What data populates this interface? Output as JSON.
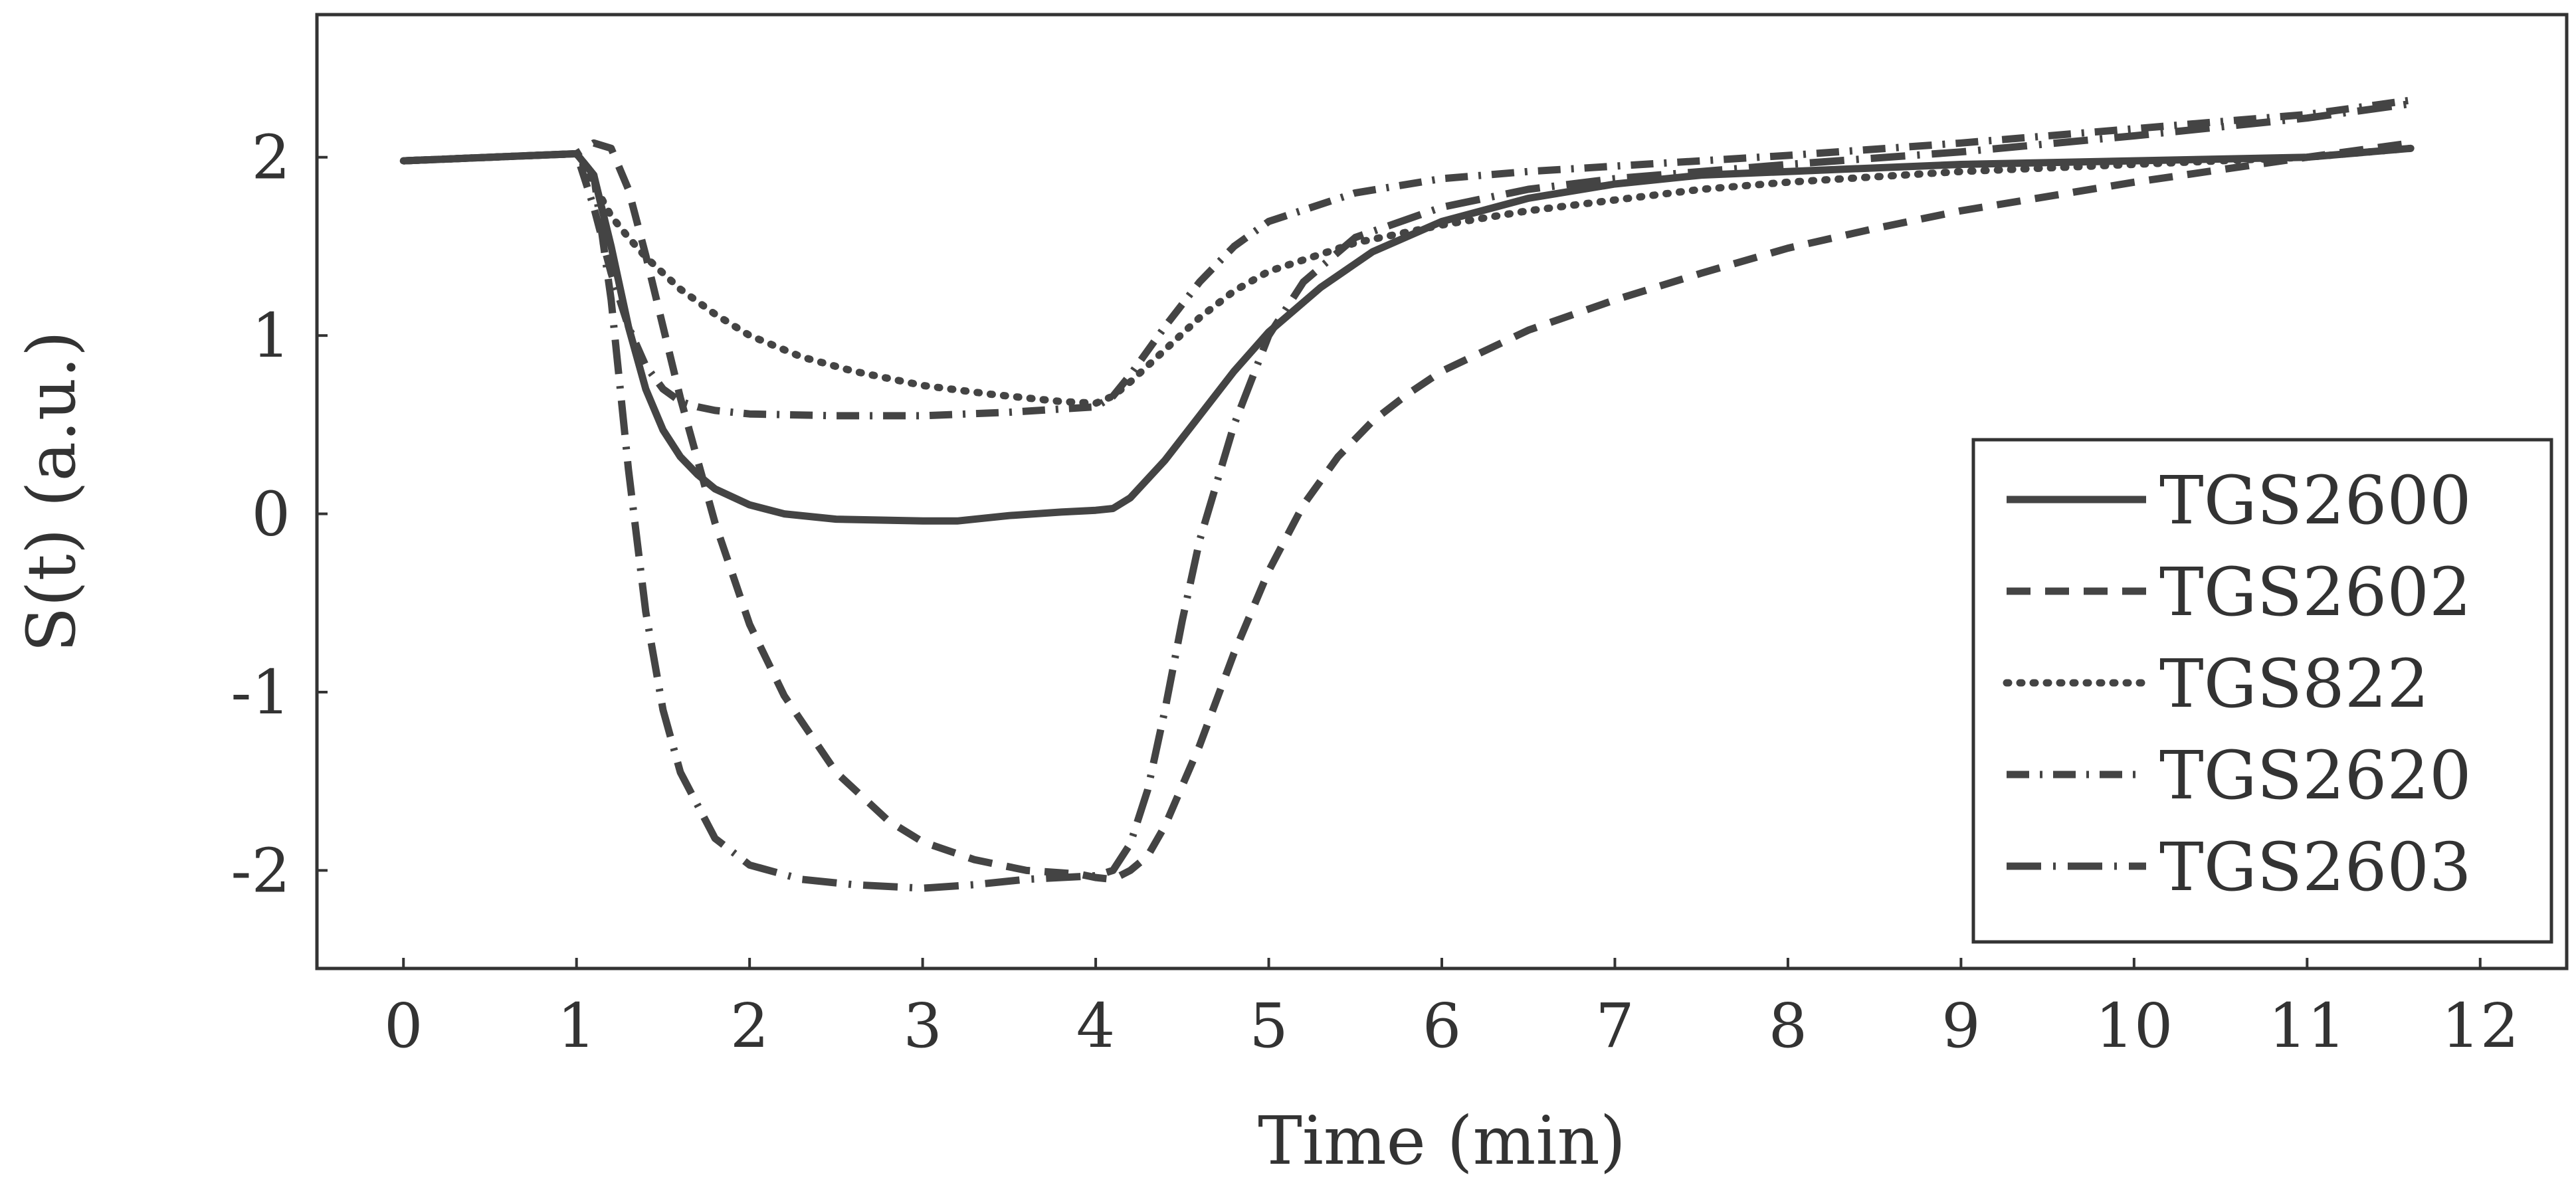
{
  "chart_data": {
    "type": "line",
    "title": "",
    "xlabel": "Time (min)",
    "ylabel": "S(t) (a.u.)",
    "xlim": [
      -0.5,
      12.5
    ],
    "ylim": [
      -2.55,
      2.8
    ],
    "xticks": [
      0,
      1,
      2,
      3,
      4,
      5,
      6,
      7,
      8,
      9,
      10,
      11,
      12
    ],
    "xtick_labels": [
      "0",
      "1",
      "2",
      "3",
      "4",
      "5",
      "6",
      "7",
      "8",
      "9",
      "10",
      "11",
      "12"
    ],
    "yticks": [
      2,
      1,
      0,
      -1,
      -2
    ],
    "ytick_labels": [
      "2",
      "1",
      "0",
      "-1",
      "-2"
    ],
    "grid": false,
    "legend_position": "bottom-right",
    "series": [
      {
        "name": "TGS2600",
        "style": "solid",
        "x": [
          0,
          0.5,
          1,
          1.1,
          1.2,
          1.3,
          1.4,
          1.5,
          1.6,
          1.7,
          1.8,
          2.0,
          2.2,
          2.5,
          3.0,
          3.2,
          3.5,
          3.8,
          4.0,
          4.1,
          4.2,
          4.4,
          4.6,
          4.8,
          5.0,
          5.3,
          5.6,
          6.0,
          6.5,
          7.0,
          7.5,
          8.0,
          9.0,
          10.0,
          11.0,
          11.6
        ],
        "y": [
          1.98,
          2.0,
          2.02,
          1.9,
          1.5,
          1.05,
          0.7,
          0.47,
          0.32,
          0.22,
          0.14,
          0.05,
          0.0,
          -0.03,
          -0.04,
          -0.04,
          -0.01,
          0.01,
          0.02,
          0.03,
          0.09,
          0.3,
          0.55,
          0.8,
          1.02,
          1.27,
          1.47,
          1.64,
          1.77,
          1.85,
          1.9,
          1.92,
          1.96,
          1.98,
          2.0,
          2.05
        ]
      },
      {
        "name": "TGS2602",
        "style": "dashed",
        "x": [
          0,
          0.5,
          1,
          1.1,
          1.2,
          1.3,
          1.4,
          1.5,
          1.6,
          1.8,
          2.0,
          2.2,
          2.5,
          2.8,
          3.0,
          3.3,
          3.6,
          3.9,
          4.0,
          4.1,
          4.2,
          4.3,
          4.4,
          4.6,
          4.8,
          5.0,
          5.2,
          5.4,
          5.6,
          5.8,
          6.0,
          6.5,
          7.0,
          7.5,
          8.0,
          8.5,
          9.0,
          10.0,
          11.0,
          11.6
        ],
        "y": [
          1.98,
          2.0,
          2.02,
          2.08,
          2.05,
          1.82,
          1.45,
          1.05,
          0.65,
          -0.05,
          -0.62,
          -1.02,
          -1.45,
          -1.72,
          -1.84,
          -1.94,
          -2.0,
          -2.02,
          -2.04,
          -2.05,
          -2.0,
          -1.92,
          -1.75,
          -1.3,
          -0.78,
          -0.32,
          0.05,
          0.32,
          0.52,
          0.67,
          0.8,
          1.03,
          1.2,
          1.35,
          1.49,
          1.6,
          1.7,
          1.86,
          2.0,
          2.08
        ]
      },
      {
        "name": "TGS822",
        "style": "dotted",
        "x": [
          0,
          0.5,
          1,
          1.1,
          1.2,
          1.3,
          1.4,
          1.5,
          1.6,
          1.8,
          2.0,
          2.3,
          2.6,
          3.0,
          3.4,
          3.8,
          4.0,
          4.1,
          4.2,
          4.4,
          4.6,
          4.8,
          5.0,
          5.5,
          6.0,
          6.5,
          7.0,
          7.5,
          8.0,
          9.0,
          10.0,
          11.0,
          11.6
        ],
        "y": [
          1.98,
          2.0,
          2.02,
          1.85,
          1.67,
          1.55,
          1.44,
          1.35,
          1.26,
          1.12,
          1.0,
          0.88,
          0.8,
          0.72,
          0.67,
          0.63,
          0.62,
          0.66,
          0.74,
          0.92,
          1.1,
          1.25,
          1.36,
          1.52,
          1.62,
          1.7,
          1.76,
          1.82,
          1.86,
          1.92,
          1.96,
          2.0,
          2.05
        ]
      },
      {
        "name": "TGS2620",
        "style": "dash-dot",
        "x": [
          0,
          0.5,
          1,
          1.1,
          1.2,
          1.3,
          1.4,
          1.5,
          1.6,
          1.7,
          1.8,
          2.0,
          2.5,
          3.0,
          3.5,
          4.0,
          4.1,
          4.2,
          4.4,
          4.6,
          4.8,
          5.0,
          5.5,
          6.0,
          6.5,
          7.0,
          8.0,
          9.0,
          10.0,
          11.0,
          11.6
        ],
        "y": [
          1.98,
          2.0,
          2.02,
          1.72,
          1.35,
          1.05,
          0.83,
          0.7,
          0.63,
          0.6,
          0.58,
          0.56,
          0.55,
          0.55,
          0.57,
          0.6,
          0.66,
          0.78,
          1.05,
          1.3,
          1.5,
          1.64,
          1.8,
          1.88,
          1.92,
          1.95,
          2.01,
          2.08,
          2.16,
          2.24,
          2.32
        ]
      },
      {
        "name": "TGS2603",
        "style": "long-dash-dot",
        "x": [
          0,
          0.5,
          1,
          1.1,
          1.2,
          1.3,
          1.4,
          1.5,
          1.6,
          1.8,
          2.0,
          2.3,
          2.6,
          3.0,
          3.3,
          3.6,
          4.0,
          4.1,
          4.2,
          4.3,
          4.4,
          4.5,
          4.6,
          4.8,
          5.0,
          5.2,
          5.5,
          6.0,
          6.5,
          7.0,
          7.5,
          8.0,
          9.0,
          10.0,
          11.0,
          11.6
        ],
        "y": [
          1.98,
          2.0,
          2.02,
          1.9,
          1.2,
          0.25,
          -0.55,
          -1.1,
          -1.45,
          -1.82,
          -1.97,
          -2.05,
          -2.08,
          -2.1,
          -2.08,
          -2.05,
          -2.03,
          -2.0,
          -1.85,
          -1.55,
          -1.1,
          -0.6,
          -0.15,
          0.5,
          1.0,
          1.3,
          1.55,
          1.72,
          1.82,
          1.88,
          1.92,
          1.96,
          2.03,
          2.12,
          2.22,
          2.3
        ]
      }
    ]
  }
}
